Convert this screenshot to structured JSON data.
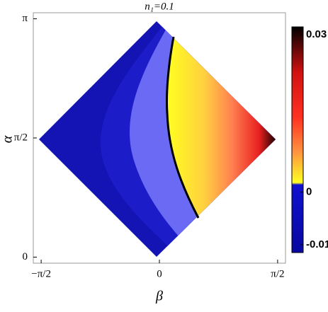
{
  "chart_data": {
    "type": "contour",
    "title": "n₁=0.1",
    "x_label": "β",
    "y_label": "α",
    "xlim": [
      -1.6755,
      1.6755
    ],
    "xticks": [
      {
        "value": -1.5708,
        "label": "−π/2"
      },
      0,
      {
        "value": 1.5708,
        "label": "π/2"
      }
    ],
    "ylim": [
      -0.08,
      3.2216
    ],
    "yticks": [
      0,
      {
        "value": 1.5708,
        "label": "π/2"
      },
      {
        "value": 3.1416,
        "label": "π"
      }
    ],
    "colorbar": {
      "lim": [
        -0.0115,
        0.0315
      ],
      "ticks": [
        0.03,
        0,
        -0.01
      ]
    }
  }
}
